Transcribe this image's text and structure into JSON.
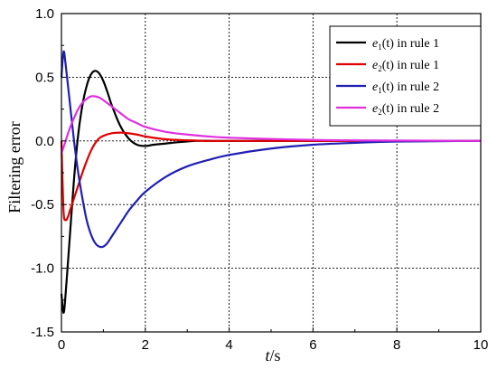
{
  "chart_data": {
    "type": "line",
    "xlabel": {
      "var": "t",
      "unit": "/s"
    },
    "ylabel": "Filtering error",
    "xlim": [
      0,
      10
    ],
    "ylim": [
      -1.5,
      1.0
    ],
    "xticks": [
      "0",
      "2",
      "4",
      "6",
      "8",
      "10"
    ],
    "yticks": [
      "1.0",
      "0.5",
      "0.0",
      "-0.5",
      "-1.0",
      "-1.5"
    ],
    "grid": true,
    "legend_position": "top-right",
    "series": [
      {
        "name": "e1(t) in rule 1",
        "legend": {
          "pre": "e",
          "sub": "1",
          "post": "(t) in rule 1"
        },
        "color": "#000000",
        "x": [
          0,
          0.05,
          0.1,
          0.2,
          0.3,
          0.4,
          0.5,
          0.6,
          0.7,
          0.8,
          0.9,
          1.0,
          1.1,
          1.2,
          1.4,
          1.6,
          1.8,
          2.0,
          2.2,
          2.5,
          2.8,
          3.2,
          3.6,
          4.0,
          5.0,
          10.0
        ],
        "y": [
          -1.2,
          -1.35,
          -1.2,
          -0.75,
          -0.3,
          0.05,
          0.28,
          0.43,
          0.52,
          0.55,
          0.53,
          0.47,
          0.38,
          0.28,
          0.12,
          0.02,
          -0.03,
          -0.04,
          -0.03,
          -0.02,
          -0.01,
          0.0,
          0.0,
          0.0,
          0.0,
          0.0
        ]
      },
      {
        "name": "e2(t) in rule 1",
        "legend": {
          "pre": "e",
          "sub": "2",
          "post": "(t) in rule 1"
        },
        "color": "#e00000",
        "x": [
          0,
          0.05,
          0.1,
          0.15,
          0.2,
          0.3,
          0.4,
          0.5,
          0.6,
          0.7,
          0.8,
          0.9,
          1.0,
          1.2,
          1.4,
          1.6,
          1.8,
          2.0,
          2.3,
          2.6,
          3.0,
          3.5,
          4.0,
          5.0,
          10.0
        ],
        "y": [
          0.0,
          -0.55,
          -0.62,
          -0.6,
          -0.55,
          -0.45,
          -0.35,
          -0.25,
          -0.16,
          -0.08,
          -0.02,
          0.02,
          0.04,
          0.06,
          0.065,
          0.06,
          0.05,
          0.035,
          0.02,
          0.01,
          0.005,
          0.0,
          0.0,
          0.0,
          0.0
        ]
      },
      {
        "name": "e1(t) in rule 2",
        "legend": {
          "pre": "e",
          "sub": "1",
          "post": "(t) in rule 2"
        },
        "color": "#1f1fb4",
        "x": [
          0,
          0.05,
          0.1,
          0.2,
          0.3,
          0.4,
          0.5,
          0.6,
          0.7,
          0.8,
          0.9,
          1.0,
          1.1,
          1.2,
          1.4,
          1.6,
          1.8,
          2.0,
          2.5,
          3.0,
          3.5,
          4.0,
          5.0,
          6.0,
          7.0,
          8.0,
          10.0
        ],
        "y": [
          0.5,
          0.7,
          0.6,
          0.3,
          0.0,
          -0.25,
          -0.45,
          -0.62,
          -0.73,
          -0.8,
          -0.83,
          -0.83,
          -0.8,
          -0.75,
          -0.65,
          -0.55,
          -0.47,
          -0.4,
          -0.28,
          -0.2,
          -0.15,
          -0.11,
          -0.06,
          -0.03,
          -0.015,
          -0.005,
          0.0
        ]
      },
      {
        "name": "e2(t) in rule 2",
        "legend": {
          "pre": "e",
          "sub": "2",
          "post": "(t) in rule 2"
        },
        "color": "#e030e0",
        "x": [
          0,
          0.05,
          0.1,
          0.2,
          0.3,
          0.4,
          0.5,
          0.6,
          0.7,
          0.8,
          0.9,
          1.0,
          1.2,
          1.4,
          1.6,
          1.8,
          2.0,
          2.5,
          3.0,
          3.5,
          4.0,
          5.0,
          6.0,
          7.0,
          10.0
        ],
        "y": [
          -0.1,
          -0.05,
          0.0,
          0.1,
          0.18,
          0.25,
          0.3,
          0.33,
          0.35,
          0.35,
          0.34,
          0.32,
          0.27,
          0.22,
          0.17,
          0.14,
          0.11,
          0.07,
          0.05,
          0.035,
          0.025,
          0.015,
          0.008,
          0.004,
          0.0
        ]
      }
    ]
  }
}
